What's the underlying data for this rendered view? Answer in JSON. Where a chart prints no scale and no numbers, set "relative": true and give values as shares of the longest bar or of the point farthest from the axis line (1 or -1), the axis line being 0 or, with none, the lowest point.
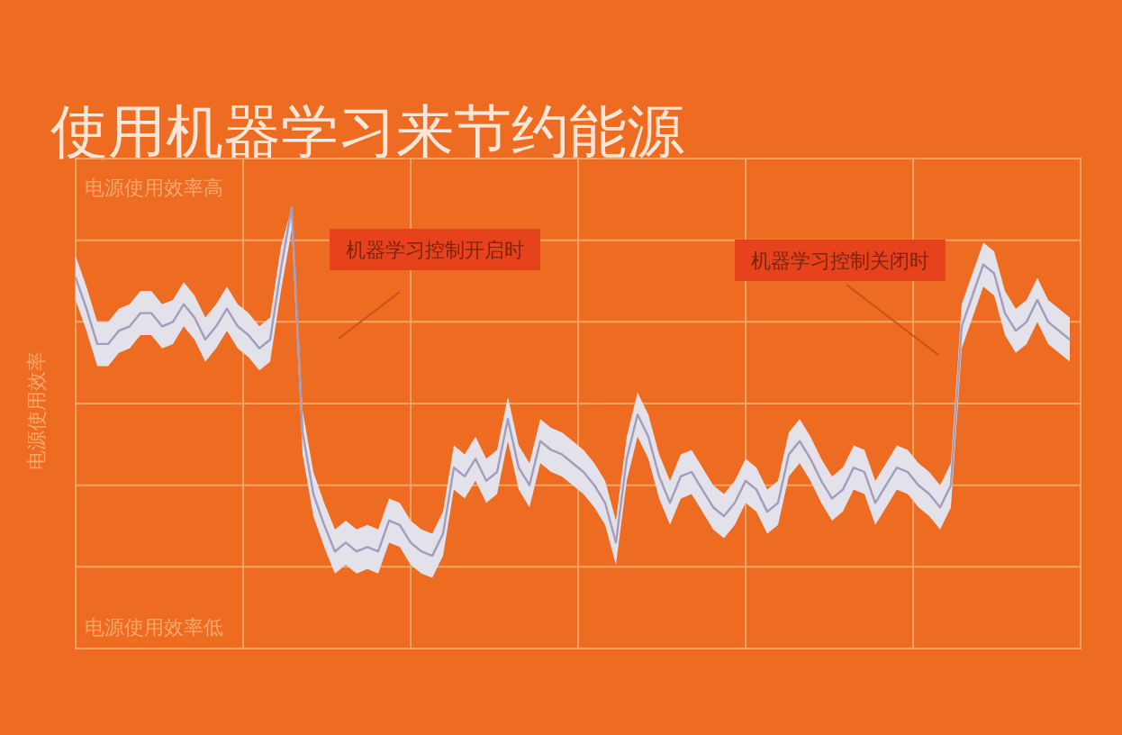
{
  "chart_data": {
    "type": "line",
    "title": "使用机器学习来节约能源",
    "ylabel": "电源使用效率",
    "annotations": [
      "电源使用效率高",
      "电源使用效率低",
      "机器学习控制开启时",
      "机器学习控制关闭时"
    ],
    "relative": true,
    "grid": true,
    "categories": [
      null,
      null,
      null,
      null,
      null,
      null,
      null,
      null,
      null,
      null,
      null,
      null,
      null,
      null,
      null,
      null,
      null,
      null,
      null,
      null,
      null,
      null,
      null,
      null,
      null,
      null,
      null,
      null,
      null,
      null,
      null,
      null,
      null,
      null,
      null,
      null,
      null,
      null,
      null,
      null,
      null,
      null,
      null,
      null,
      null,
      null,
      null,
      null,
      null,
      null,
      null,
      null,
      null,
      null,
      null,
      null,
      null,
      null,
      null,
      null,
      null,
      null,
      null,
      null,
      null,
      null,
      null,
      null,
      null,
      null,
      null,
      null,
      null,
      null,
      null,
      null,
      null,
      null,
      null,
      null,
      null,
      null,
      null,
      null,
      null,
      null,
      null,
      null,
      null,
      null,
      null,
      null,
      null
    ],
    "series": [
      {
        "color": "#a39cba",
        "values": [
          0.84,
          0.77,
          0.69,
          0.69,
          0.72,
          0.73,
          0.76,
          0.76,
          0.73,
          0.74,
          0.78,
          0.75,
          0.7,
          0.73,
          0.77,
          0.73,
          0.71,
          0.68,
          0.7,
          0.86,
          1,
          0.49,
          0.35,
          0.28,
          0.22,
          0.24,
          0.22,
          0.23,
          0.22,
          0.29,
          0.28,
          0.24,
          0.22,
          0.21,
          0.26,
          0.41,
          0.39,
          0.43,
          0.38,
          0.4,
          0.52,
          0.41,
          0.37,
          0.47,
          0.45,
          0.44,
          0.42,
          0.4,
          0.37,
          0.33,
          0.24,
          0.43,
          0.53,
          0.48,
          0.39,
          0.33,
          0.39,
          0.4,
          0.36,
          0.32,
          0.3,
          0.33,
          0.38,
          0.36,
          0.31,
          0.33,
          0.44,
          0.47,
          0.43,
          0.38,
          0.34,
          0.36,
          0.41,
          0.4,
          0.33,
          0.37,
          0.41,
          0.4,
          0.37,
          0.35,
          0.32,
          0.37,
          0.73,
          0.8,
          0.87,
          0.85,
          0.76,
          0.72,
          0.74,
          0.79,
          0.74,
          0.72,
          0.7
        ],
        "lower": [
          0.79,
          0.72,
          0.64,
          0.64,
          0.67,
          0.68,
          0.71,
          0.71,
          0.68,
          0.69,
          0.73,
          0.7,
          0.65,
          0.68,
          0.72,
          0.68,
          0.66,
          0.63,
          0.65,
          0.81,
          0.95,
          0.44,
          0.3,
          0.23,
          0.17,
          0.19,
          0.17,
          0.18,
          0.17,
          0.24,
          0.23,
          0.19,
          0.17,
          0.16,
          0.21,
          0.36,
          0.34,
          0.38,
          0.33,
          0.35,
          0.47,
          0.36,
          0.32,
          0.42,
          0.4,
          0.39,
          0.37,
          0.35,
          0.32,
          0.28,
          0.19,
          0.38,
          0.48,
          0.43,
          0.34,
          0.28,
          0.34,
          0.35,
          0.31,
          0.27,
          0.25,
          0.28,
          0.33,
          0.31,
          0.26,
          0.28,
          0.39,
          0.42,
          0.38,
          0.33,
          0.29,
          0.31,
          0.36,
          0.35,
          0.28,
          0.32,
          0.36,
          0.35,
          0.32,
          0.3,
          0.27,
          0.32,
          0.68,
          0.75,
          0.82,
          0.8,
          0.71,
          0.67,
          0.69,
          0.74,
          0.69,
          0.67,
          0.65
        ],
        "upper": [
          0.89,
          0.82,
          0.74,
          0.74,
          0.77,
          0.78,
          0.81,
          0.81,
          0.78,
          0.79,
          0.83,
          0.8,
          0.75,
          0.78,
          0.82,
          0.78,
          0.76,
          0.73,
          0.75,
          0.91,
          1,
          0.54,
          0.4,
          0.33,
          0.27,
          0.29,
          0.27,
          0.28,
          0.27,
          0.34,
          0.33,
          0.29,
          0.27,
          0.26,
          0.31,
          0.46,
          0.44,
          0.48,
          0.43,
          0.45,
          0.57,
          0.46,
          0.42,
          0.52,
          0.5,
          0.49,
          0.47,
          0.45,
          0.42,
          0.38,
          0.29,
          0.48,
          0.58,
          0.53,
          0.44,
          0.38,
          0.44,
          0.45,
          0.41,
          0.37,
          0.35,
          0.38,
          0.43,
          0.41,
          0.36,
          0.38,
          0.49,
          0.52,
          0.48,
          0.43,
          0.39,
          0.41,
          0.46,
          0.45,
          0.38,
          0.42,
          0.46,
          0.45,
          0.42,
          0.4,
          0.37,
          0.42,
          0.78,
          0.85,
          0.92,
          0.9,
          0.81,
          0.77,
          0.79,
          0.84,
          0.79,
          0.77,
          0.75
        ]
      }
    ]
  }
}
